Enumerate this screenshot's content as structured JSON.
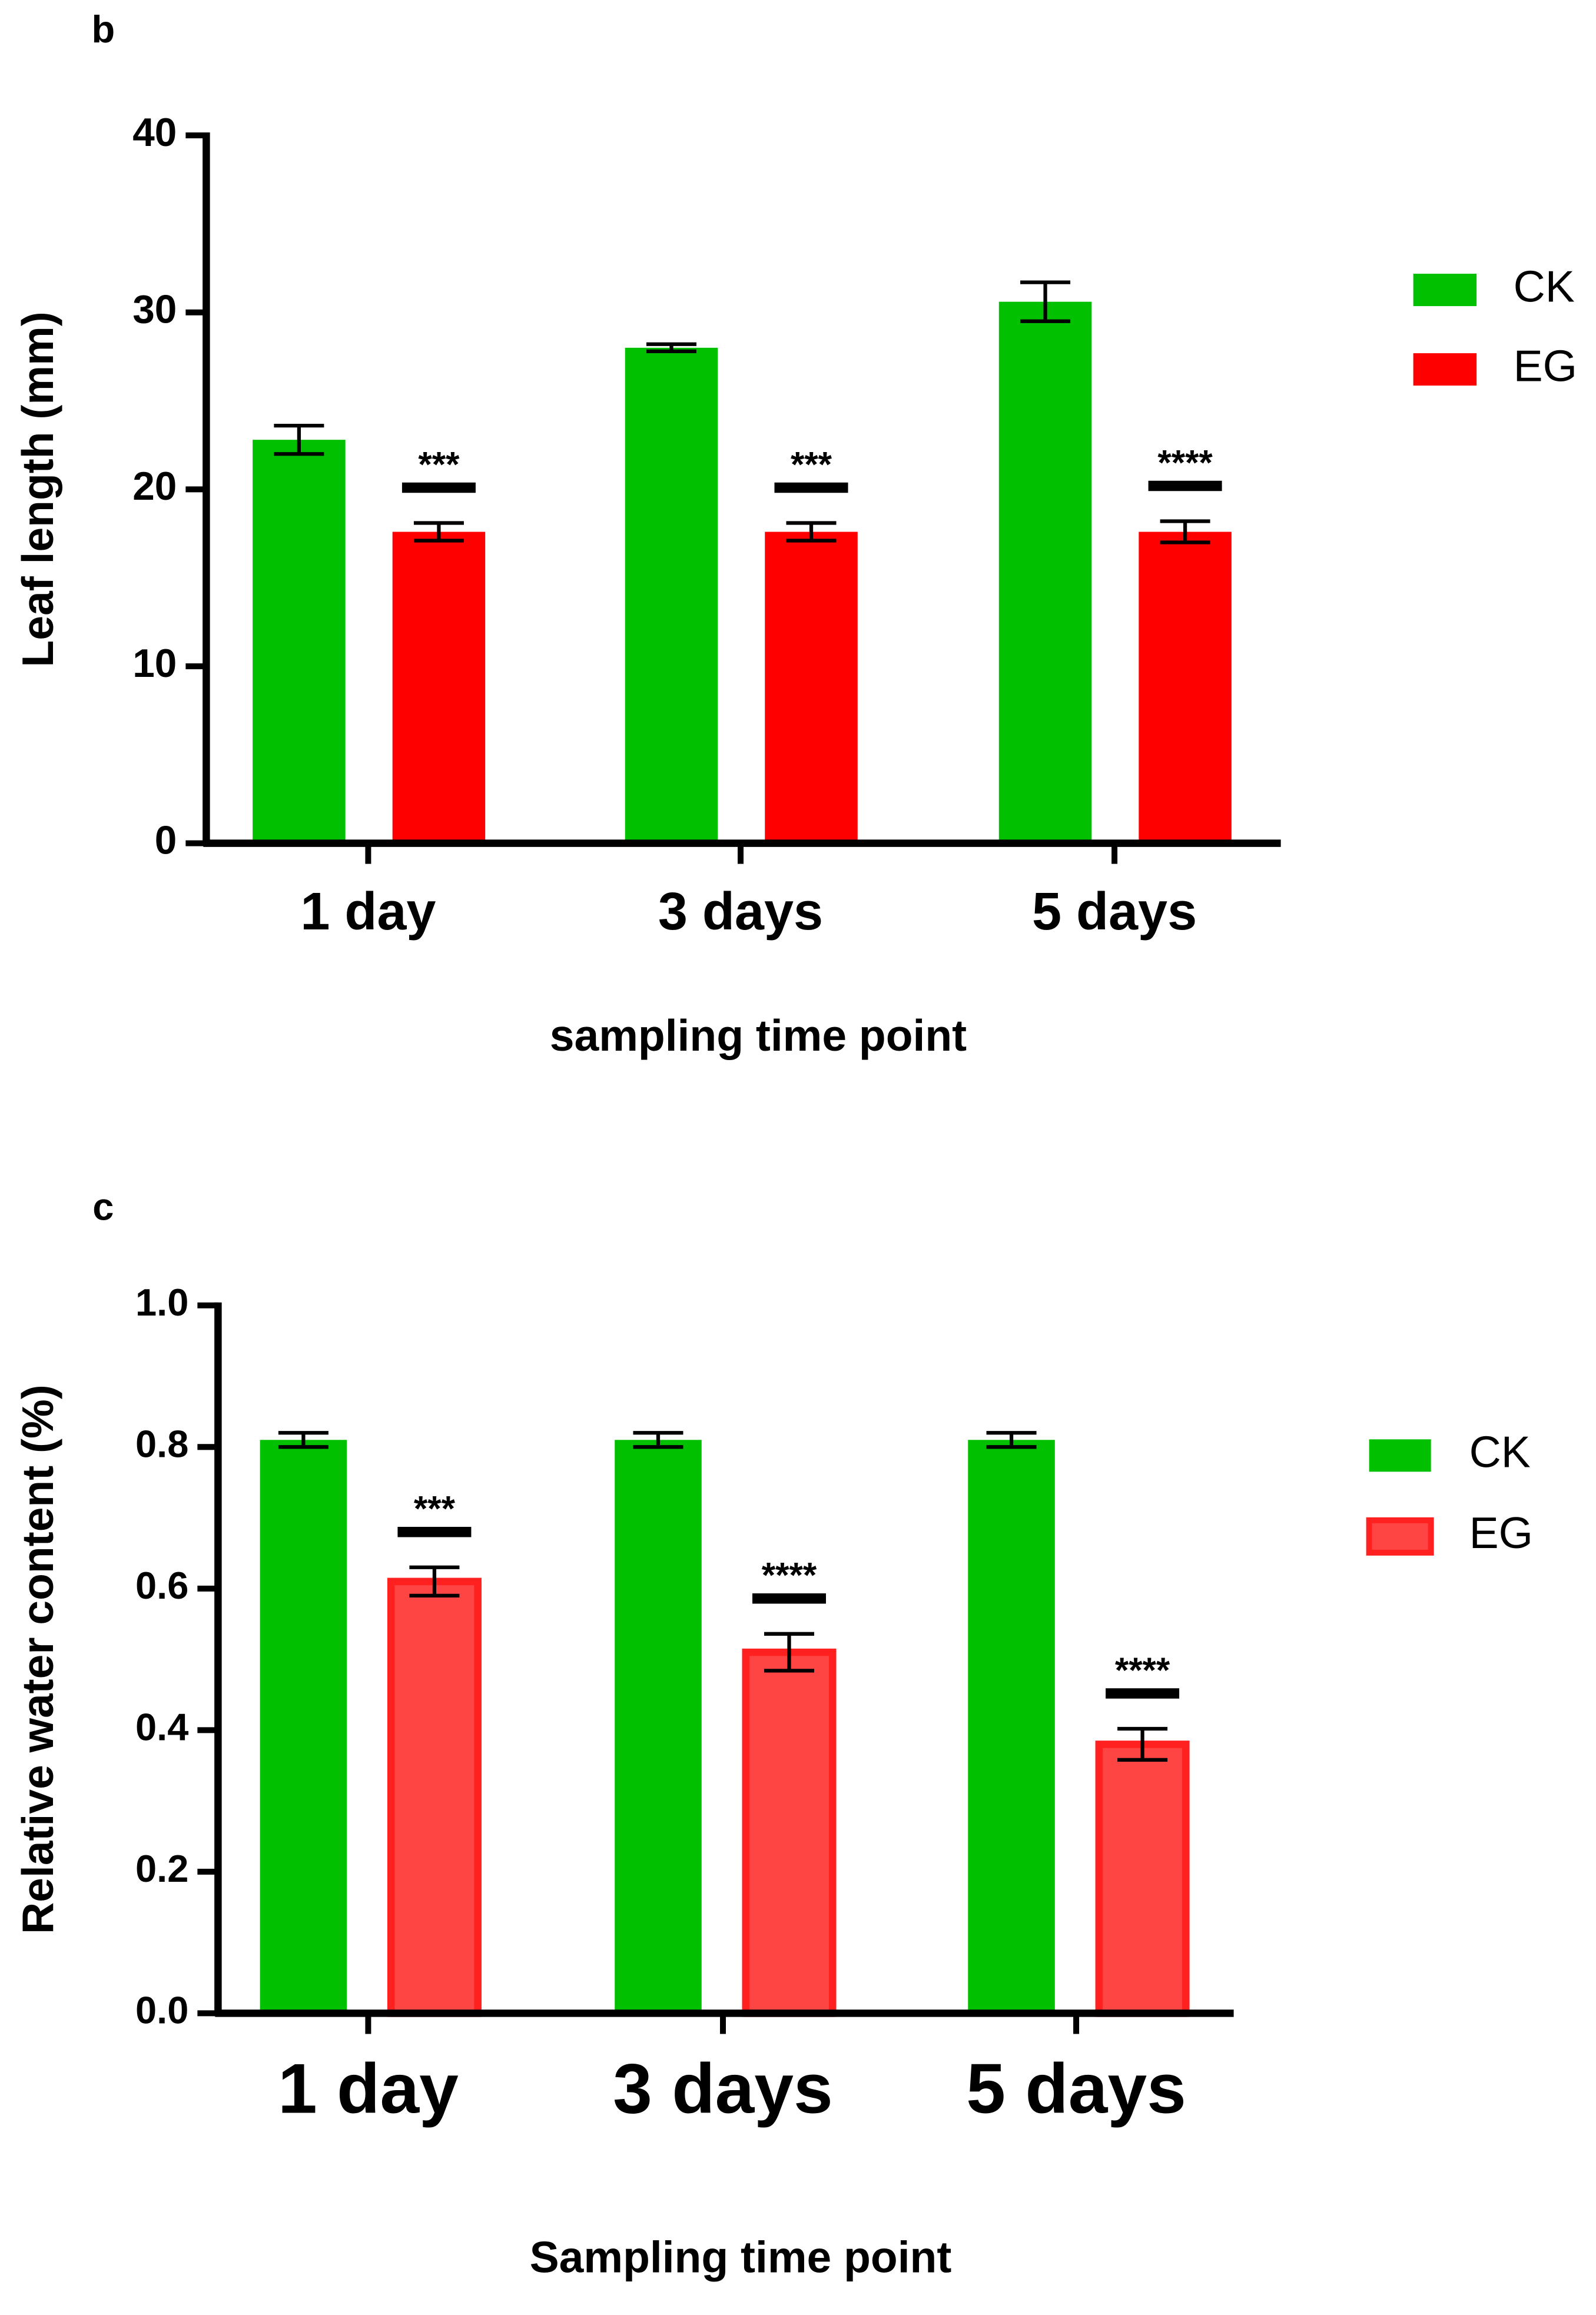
{
  "chart_data": [
    {
      "type": "bar",
      "panel": "b",
      "y_label": "Leaf length (mm)",
      "x_label": "sampling time point",
      "categories": [
        "1 day",
        "3 days",
        "5 days"
      ],
      "series": [
        {
          "name": "CK",
          "color": "#00c000",
          "values": [
            22.8,
            28.0,
            30.6
          ],
          "errors": [
            0.8,
            0.2,
            1.1
          ]
        },
        {
          "name": "EG",
          "color": "#ff0000",
          "values": [
            17.6,
            17.6,
            17.6
          ],
          "errors": [
            0.5,
            0.5,
            0.6
          ],
          "significance": [
            "***",
            "***",
            "****"
          ]
        }
      ],
      "ylim": [
        0,
        40
      ],
      "yticks": [
        0,
        10,
        20,
        30,
        40
      ]
    },
    {
      "type": "bar",
      "panel": "c",
      "y_label": "Relative water content (%)",
      "x_label": "Sampling time point",
      "categories": [
        "1 day",
        "3 days",
        "5 days"
      ],
      "series": [
        {
          "name": "CK",
          "color": "#00c000",
          "values": [
            0.81,
            0.81,
            0.81
          ],
          "errors": [
            0.01,
            0.01,
            0.01
          ]
        },
        {
          "name": "EG",
          "color": "#ff4444",
          "border": "#ff2020",
          "values": [
            0.61,
            0.51,
            0.38
          ],
          "errors": [
            0.02,
            0.026,
            0.022
          ],
          "significance": [
            "***",
            "****",
            "****"
          ]
        }
      ],
      "ylim": [
        0,
        1
      ],
      "yticks": [
        {
          "value": 0,
          "label": "0.0"
        },
        {
          "value": 0.2,
          "label": "0.2"
        },
        {
          "value": 0.4,
          "label": "0.4"
        },
        {
          "value": 0.6,
          "label": "0.6"
        },
        {
          "value": 0.8,
          "label": "0.8"
        },
        {
          "value": 1,
          "label": "1.0"
        }
      ]
    }
  ]
}
